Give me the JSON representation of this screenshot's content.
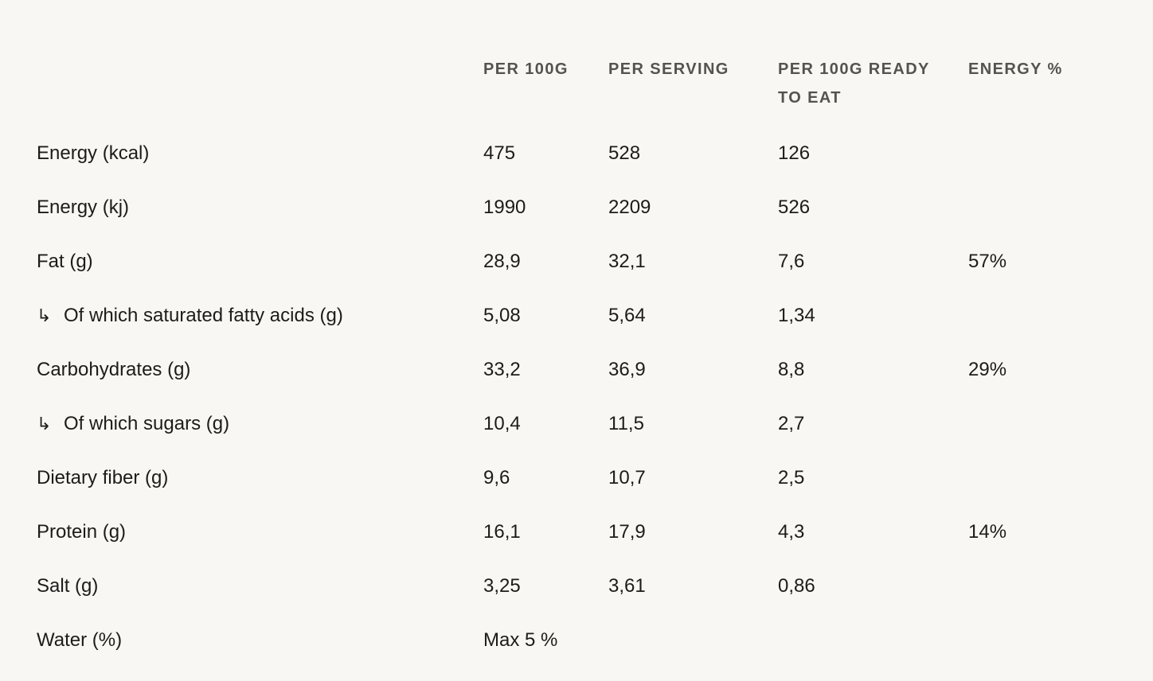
{
  "columns": {
    "per_100g": "PER 100G",
    "per_serving": "PER SERVING",
    "per_100g_ready": "PER 100G READY TO EAT",
    "energy_pct": "ENERGY %"
  },
  "sub_arrow": "↳",
  "rows": [
    {
      "label": "Energy (kcal)",
      "per_100g": "475",
      "per_serving": "528",
      "ready": "126",
      "energy_pct": ""
    },
    {
      "label": "Energy (kj)",
      "per_100g": "1990",
      "per_serving": "2209",
      "ready": "526",
      "energy_pct": ""
    },
    {
      "label": "Fat (g)",
      "per_100g": "28,9",
      "per_serving": "32,1",
      "ready": "7,6",
      "energy_pct": "57%"
    },
    {
      "label": "Of which saturated fatty acids (g)",
      "per_100g": "5,08",
      "per_serving": "5,64",
      "ready": "1,34",
      "energy_pct": ""
    },
    {
      "label": "Carbohydrates (g)",
      "per_100g": "33,2",
      "per_serving": "36,9",
      "ready": "8,8",
      "energy_pct": "29%"
    },
    {
      "label": "Of which sugars (g)",
      "per_100g": "10,4",
      "per_serving": "11,5",
      "ready": "2,7",
      "energy_pct": ""
    },
    {
      "label": "Dietary fiber (g)",
      "per_100g": "9,6",
      "per_serving": "10,7",
      "ready": "2,5",
      "energy_pct": ""
    },
    {
      "label": "Protein (g)",
      "per_100g": "16,1",
      "per_serving": "17,9",
      "ready": "4,3",
      "energy_pct": "14%"
    },
    {
      "label": "Salt (g)",
      "per_100g": "3,25",
      "per_serving": "3,61",
      "ready": "0,86",
      "energy_pct": ""
    },
    {
      "label": "Water (%)",
      "per_100g": "Max 5 %",
      "per_serving": "",
      "ready": "",
      "energy_pct": ""
    }
  ]
}
